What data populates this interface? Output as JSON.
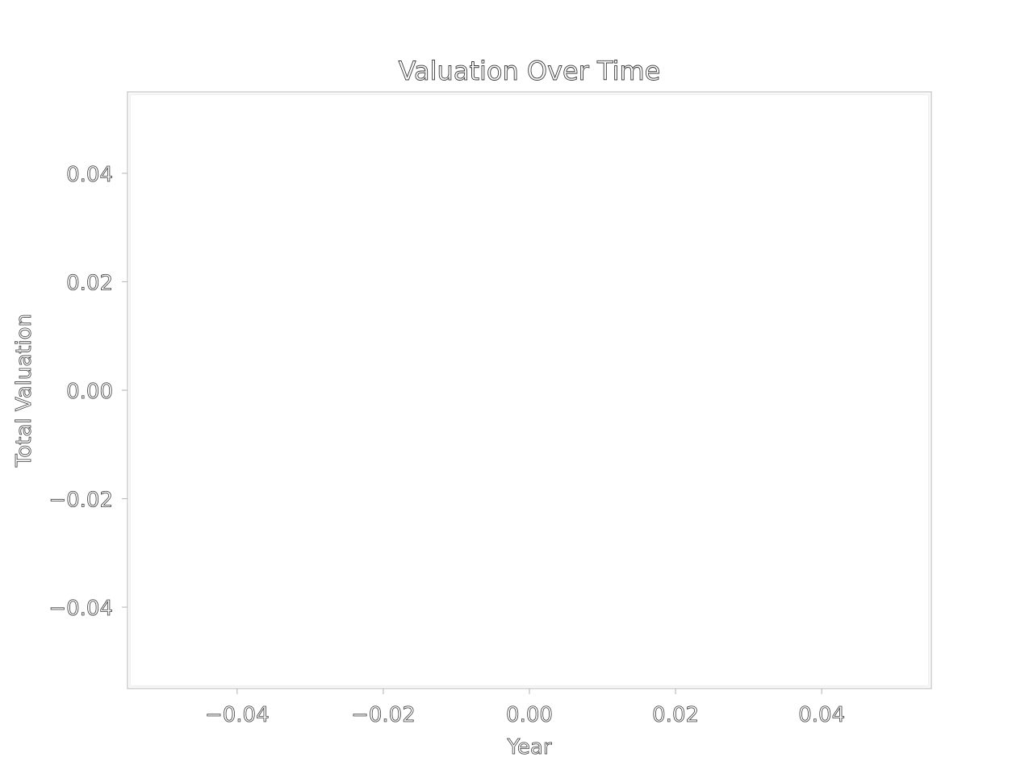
{
  "chart_data": {
    "type": "line",
    "title": "Valuation Over Time",
    "xlabel": "Year",
    "ylabel": "Total Valuation",
    "xlim": [
      -0.055,
      0.055
    ],
    "ylim": [
      -0.055,
      0.055
    ],
    "x_ticks": [
      -0.04,
      -0.02,
      0.0,
      0.02,
      0.04
    ],
    "x_tick_labels": [
      "−0.04",
      "−0.02",
      "0.00",
      "0.02",
      "0.04"
    ],
    "y_ticks": [
      0.04,
      0.02,
      0.0,
      -0.02,
      -0.04
    ],
    "y_tick_labels": [
      "0.04",
      "0.02",
      "0.00",
      "−0.02",
      "−0.04"
    ],
    "series": [],
    "grid": false,
    "legend": "none"
  }
}
